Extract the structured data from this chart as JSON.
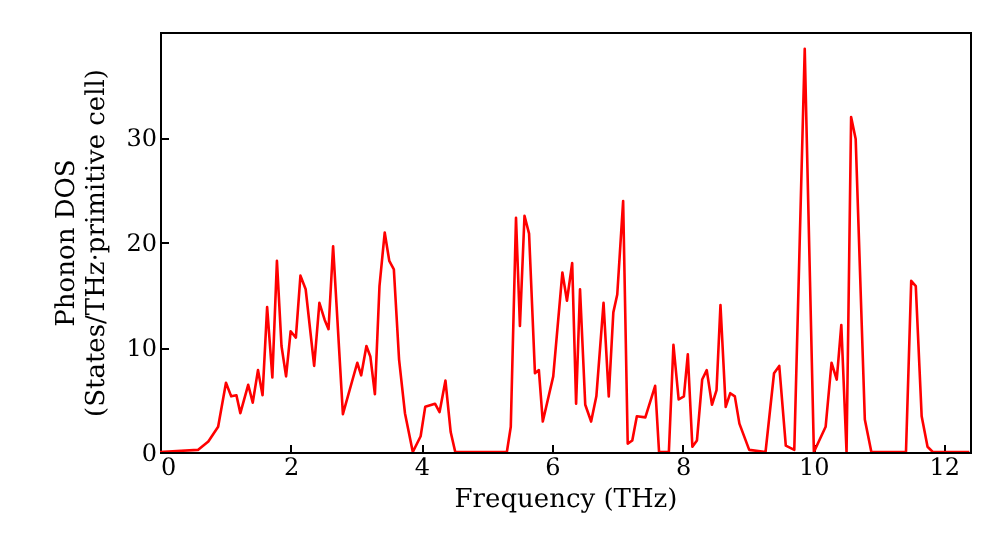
{
  "chart_data": {
    "type": "line",
    "xlabel": "Frequency (THz)",
    "ylabel": "Phonon DOS\n(States/THz·primitive cell)",
    "xlim": [
      0,
      12.4
    ],
    "ylim": [
      0,
      40
    ],
    "xticks": [
      0,
      2,
      4,
      6,
      8,
      10,
      12
    ],
    "yticks": [
      0,
      10,
      20,
      30
    ],
    "grid": false,
    "marker": "none",
    "line_style": "solid",
    "series": [
      {
        "color": "#ff0000",
        "x": [
          0,
          0.58,
          0.74,
          0.89,
          1.01,
          1.09,
          1.17,
          1.23,
          1.35,
          1.42,
          1.5,
          1.57,
          1.64,
          1.72,
          1.79,
          1.86,
          1.93,
          2.0,
          2.08,
          2.15,
          2.23,
          2.36,
          2.44,
          2.52,
          2.58,
          2.65,
          2.8,
          3.02,
          3.08,
          3.16,
          3.22,
          3.29,
          3.36,
          3.44,
          3.51,
          3.58,
          3.66,
          3.75,
          3.87,
          3.99,
          4.06,
          4.21,
          4.28,
          4.37,
          4.45,
          4.52,
          5.31,
          5.37,
          5.45,
          5.51,
          5.58,
          5.65,
          5.74,
          5.8,
          5.86,
          6.02,
          6.16,
          6.23,
          6.31,
          6.37,
          6.43,
          6.51,
          6.6,
          6.68,
          6.79,
          6.87,
          6.94,
          7.0,
          7.09,
          7.16,
          7.23,
          7.3,
          7.43,
          7.58,
          7.64,
          7.79,
          7.86,
          7.94,
          8.02,
          8.08,
          8.15,
          8.22,
          8.3,
          8.37,
          8.45,
          8.52,
          8.58,
          8.66,
          8.73,
          8.8,
          8.87,
          9.02,
          9.27,
          9.4,
          9.48,
          9.58,
          9.71,
          9.87,
          10.01,
          10.19,
          10.28,
          10.36,
          10.43,
          10.51,
          10.58,
          10.65,
          10.79,
          10.89,
          11.42,
          11.5,
          11.57,
          11.66,
          11.75,
          11.83,
          12.39
        ],
        "values": [
          0,
          0.2,
          1.0,
          2.4,
          6.6,
          5.3,
          5.4,
          3.7,
          6.4,
          4.7,
          7.8,
          5.4,
          13.8,
          7.1,
          18.2,
          10.1,
          7.2,
          11.5,
          10.9,
          16.8,
          15.5,
          8.2,
          14.2,
          12.6,
          11.7,
          19.6,
          3.6,
          8.5,
          7.3,
          10.1,
          9.1,
          5.5,
          15.8,
          20.9,
          18.2,
          17.4,
          8.8,
          3.7,
          0,
          1.5,
          4.3,
          4.6,
          3.8,
          6.8,
          1.9,
          0,
          0,
          2.4,
          22.3,
          12.0,
          22.5,
          20.8,
          7.5,
          7.8,
          2.9,
          7.2,
          17.1,
          14.4,
          18.0,
          4.6,
          15.5,
          4.5,
          2.9,
          5.3,
          14.2,
          5.3,
          13.3,
          15.0,
          23.9,
          0.8,
          1.1,
          3.4,
          3.3,
          6.3,
          0,
          0,
          10.2,
          5.0,
          5.3,
          9.3,
          0.5,
          1.1,
          6.9,
          7.8,
          4.5,
          5.9,
          14.0,
          4.3,
          5.6,
          5.3,
          2.7,
          0.2,
          0,
          7.5,
          8.2,
          0.6,
          0.2,
          38.4,
          0,
          2.4,
          8.5,
          6.9,
          12.1,
          0,
          31.9,
          29.8,
          3.1,
          0,
          0,
          16.3,
          15.8,
          3.4,
          0.5,
          0,
          0
        ]
      }
    ]
  }
}
